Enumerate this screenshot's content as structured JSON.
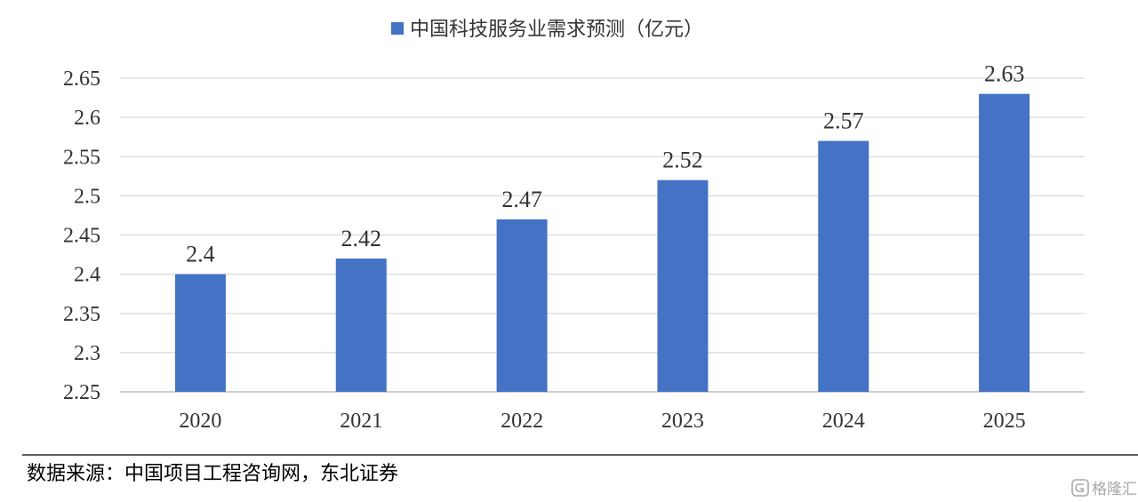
{
  "chart_data": {
    "type": "bar",
    "categories": [
      "2020",
      "2021",
      "2022",
      "2023",
      "2024",
      "2025"
    ],
    "series": [
      {
        "name": "中国科技服务业需求预测（亿元）",
        "values": [
          2.4,
          2.42,
          2.47,
          2.52,
          2.57,
          2.63
        ],
        "color": "#4472C4"
      }
    ],
    "data_labels": [
      "2.4",
      "2.42",
      "2.47",
      "2.52",
      "2.57",
      "2.63"
    ],
    "yticks": [
      "2.25",
      "2.3",
      "2.35",
      "2.4",
      "2.45",
      "2.5",
      "2.55",
      "2.6",
      "2.65"
    ],
    "ylim": [
      2.25,
      2.65
    ],
    "grid": true,
    "legend_position": "top"
  },
  "source_note": "数据来源：中国项目工程咨询网，东北证券",
  "watermark": {
    "text": "格隆汇",
    "icon": "g-logo-icon"
  }
}
